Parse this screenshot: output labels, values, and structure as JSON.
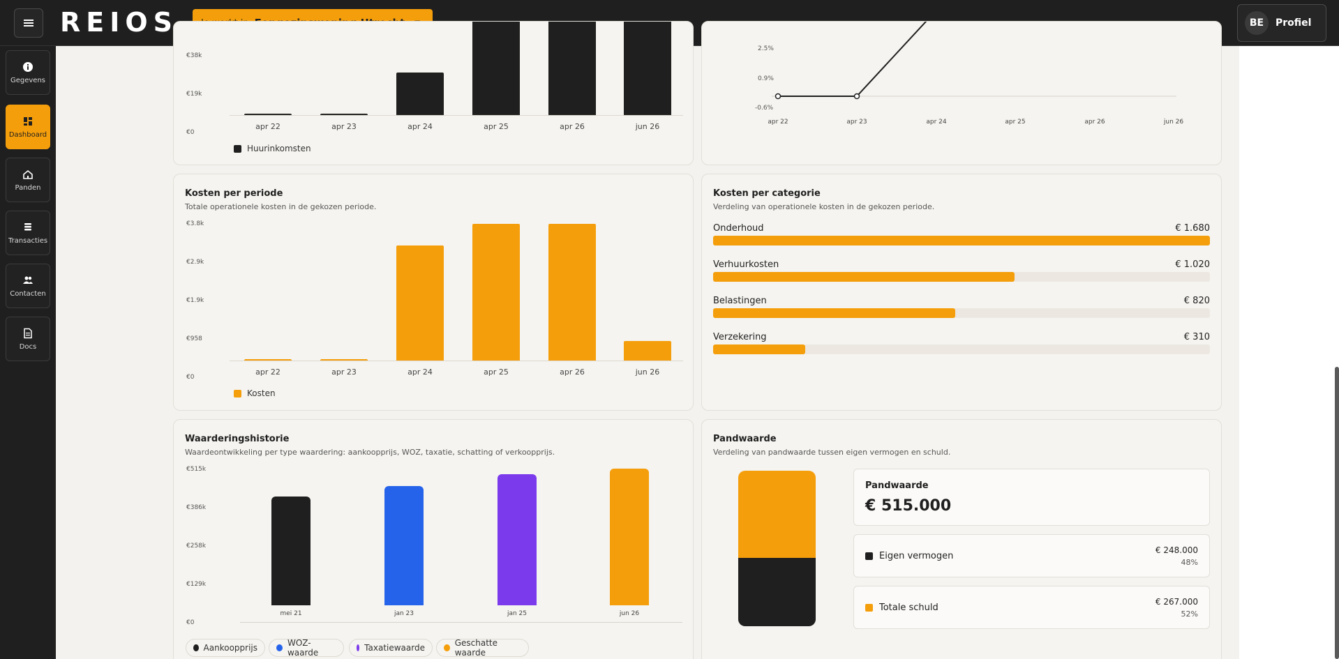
{
  "app": {
    "logo": "REIOS"
  },
  "header": {
    "workspace_prefix": "Je werkt in",
    "workspace_name": "Eengezinswoning Utrecht",
    "profile_initials": "BE",
    "profile_label": "Profiel"
  },
  "sidebar": {
    "items": [
      {
        "label": "Gegevens",
        "icon": "info-icon",
        "active": false
      },
      {
        "label": "Dashboard",
        "icon": "dashboard-icon",
        "active": true
      },
      {
        "label": "Panden",
        "icon": "house-icon",
        "active": false
      },
      {
        "label": "Transacties",
        "icon": "coins-icon",
        "active": false
      },
      {
        "label": "Contacten",
        "icon": "people-icon",
        "active": false
      },
      {
        "label": "Docs",
        "icon": "document-icon",
        "active": false
      }
    ]
  },
  "colors": {
    "accent": "#f59e0b",
    "dark": "#1f1f1f",
    "blue": "#2563eb",
    "purple": "#7c3aed"
  },
  "rent_card": {
    "y_ticks": [
      "€38k",
      "€19k",
      "€0"
    ],
    "legend": "Huurinkomsten"
  },
  "yield_card": {
    "y_ticks": [
      "2.5%",
      "0.9%",
      "-0.6%"
    ]
  },
  "costs_card": {
    "title": "Kosten per periode",
    "subtitle": "Totale operationele kosten in de gekozen periode.",
    "y_ticks": [
      "€3.8k",
      "€2.9k",
      "€1.9k",
      "€958",
      "€0"
    ],
    "legend": "Kosten"
  },
  "category_card": {
    "title": "Kosten per categorie",
    "subtitle": "Verdeling van operationele kosten in de gekozen periode.",
    "rows": [
      {
        "name": "Onderhoud",
        "amount": "€ 1.680",
        "fraction": 1.0
      },
      {
        "name": "Verhuurkosten",
        "amount": "€ 1.020",
        "fraction": 0.607
      },
      {
        "name": "Belastingen",
        "amount": "€ 820",
        "fraction": 0.488
      },
      {
        "name": "Verzekering",
        "amount": "€ 310",
        "fraction": 0.185
      }
    ]
  },
  "valuation_card": {
    "title": "Waarderingshistorie",
    "subtitle": "Waardeontwikkeling per type waardering: aankoopprijs, WOZ, taxatie, schatting of verkoopprijs.",
    "y_ticks": [
      "€515k",
      "€386k",
      "€258k",
      "€129k",
      "€0"
    ],
    "legend": [
      "Aankoopprijs",
      "WOZ-waarde",
      "Taxatiewaarde",
      "Geschatte waarde"
    ]
  },
  "property_card": {
    "title": "Pandwaarde",
    "subtitle": "Verdeling van pandwaarde tussen eigen vermogen en schuld.",
    "total_label": "Pandwaarde",
    "total_value": "€ 515.000",
    "equity_label": "Eigen vermogen",
    "equity_value": "€ 248.000",
    "equity_pct": "48%",
    "debt_label": "Totale schuld",
    "debt_value": "€ 267.000",
    "debt_pct": "52%",
    "equity_fraction": 0.48
  },
  "chart_data": [
    {
      "type": "bar",
      "categories": [
        "apr 22",
        "apr 23",
        "apr 24",
        "apr 25",
        "apr 26",
        "jun 26"
      ],
      "series": [
        {
          "name": "Huurinkomsten",
          "values": [
            0.5,
            0.5,
            21000,
            57000,
            57000,
            57000
          ]
        }
      ],
      "ylim": [
        0,
        57000
      ],
      "note_visible_ticks": [
        "€0",
        "€19k",
        "€38k"
      ]
    },
    {
      "type": "line",
      "categories": [
        "apr 22",
        "apr 23",
        "apr 24",
        "apr 25",
        "apr 26",
        "jun 26"
      ],
      "series": [
        {
          "values": [
            0.0,
            0.0,
            3.0,
            3.0,
            3.0,
            3.0
          ]
        }
      ],
      "ylim": [
        -0.6,
        3.5
      ]
    },
    {
      "type": "bar",
      "categories": [
        "apr 22",
        "apr 23",
        "apr 24",
        "apr 25",
        "apr 26",
        "jun 26"
      ],
      "series": [
        {
          "name": "Kosten",
          "values": [
            20,
            20,
            3200,
            3800,
            3800,
            550
          ]
        }
      ],
      "ylim": [
        0,
        3800
      ]
    },
    {
      "type": "bar",
      "categories": [
        "mei 21",
        "jan 23",
        "jan 25",
        "jun 26"
      ],
      "series": [
        {
          "values": [
            410000,
            450000,
            495000,
            515000
          ]
        }
      ],
      "colors": [
        "#1f1f1f",
        "#2563eb",
        "#7c3aed",
        "#f59e0b"
      ],
      "ylim": [
        0,
        515000
      ]
    }
  ]
}
